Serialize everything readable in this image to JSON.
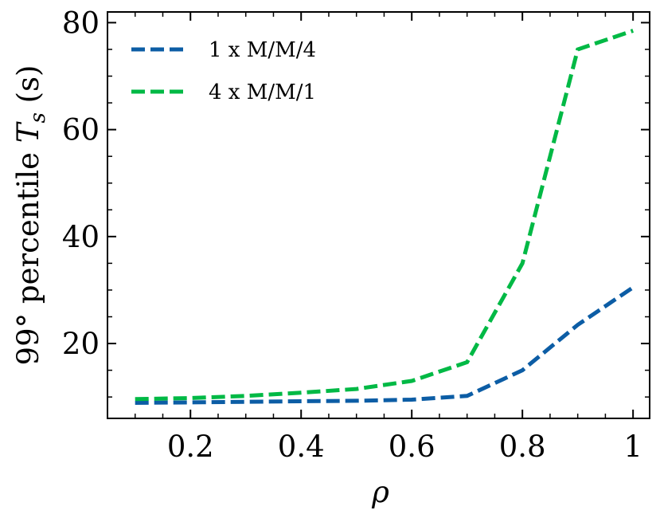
{
  "chart_data": {
    "type": "line",
    "title": "",
    "xlabel": "ρ",
    "ylabel": {
      "prefix": "99° percentile ",
      "var": "T",
      "sub": "s",
      "suffix": " (s)"
    },
    "xlim": [
      0.05,
      1.03
    ],
    "ylim": [
      6,
      82
    ],
    "xticks": [
      0.2,
      0.4,
      0.6,
      0.8,
      1.0
    ],
    "xtick_labels": [
      "0.2",
      "0.4",
      "0.6",
      "0.8",
      "1"
    ],
    "yticks": [
      20,
      40,
      60,
      80
    ],
    "ytick_labels": [
      "20",
      "40",
      "60",
      "80"
    ],
    "x": [
      0.1,
      0.2,
      0.3,
      0.4,
      0.5,
      0.6,
      0.7,
      0.8,
      0.9,
      1.0
    ],
    "series": [
      {
        "name": "1 x M/M/4",
        "color": "#0C5DA5",
        "values": [
          8.9,
          9.0,
          9.1,
          9.2,
          9.3,
          9.5,
          10.2,
          15.0,
          23.5,
          30.5
        ]
      },
      {
        "name": "4 x M/M/1",
        "color": "#00B945",
        "values": [
          9.6,
          9.8,
          10.2,
          10.8,
          11.5,
          13.0,
          16.5,
          35.0,
          75.0,
          78.5
        ]
      }
    ],
    "legend_position": "top-left",
    "grid": false
  }
}
